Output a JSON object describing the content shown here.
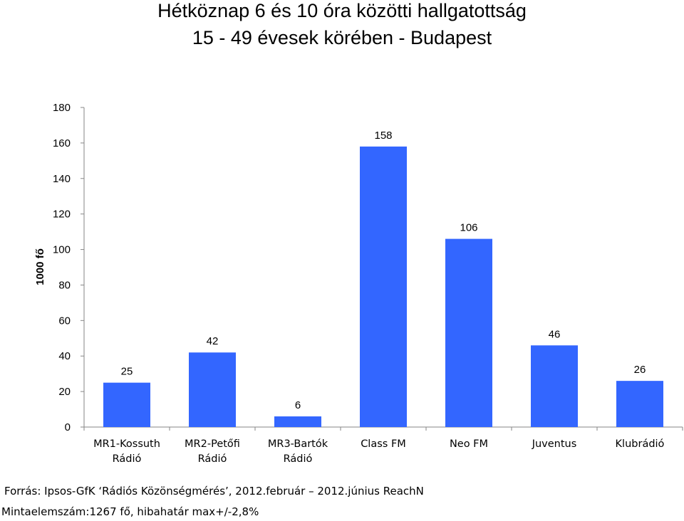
{
  "chart_data": {
    "type": "bar",
    "title": "Hétköznap 6 és 10 óra közötti hallgatottság",
    "subtitle": "15 - 49 évesek körében - Budapest",
    "xlabel": "",
    "ylabel": "1000 fő",
    "ylim": [
      0,
      180
    ],
    "yticks": [
      0,
      20,
      40,
      60,
      80,
      100,
      120,
      140,
      160,
      180
    ],
    "grid": false,
    "legend": "none",
    "categories": [
      [
        "MR1-Kossuth",
        "Rádió"
      ],
      [
        "MR2-Petőfi",
        "Rádió"
      ],
      [
        "MR3-Bartók",
        "Rádió"
      ],
      [
        "Class FM"
      ],
      [
        "Neo FM"
      ],
      [
        "Juventus"
      ],
      [
        "Klubrádió"
      ]
    ],
    "values": [
      25,
      42,
      6,
      158,
      106,
      46,
      26
    ],
    "data_labels": [
      "25",
      "42",
      "6",
      "158",
      "106",
      "46",
      "26"
    ],
    "bar_color": "#3366ff"
  },
  "footer": {
    "source": "Forrás: Ipsos-GfK ‘Rádiós Közönségmérés’, 2012.február – 2012.június ReachN",
    "sample": "Mintaelemszám:1267 fő, hibahatár max+/-2,8%"
  }
}
